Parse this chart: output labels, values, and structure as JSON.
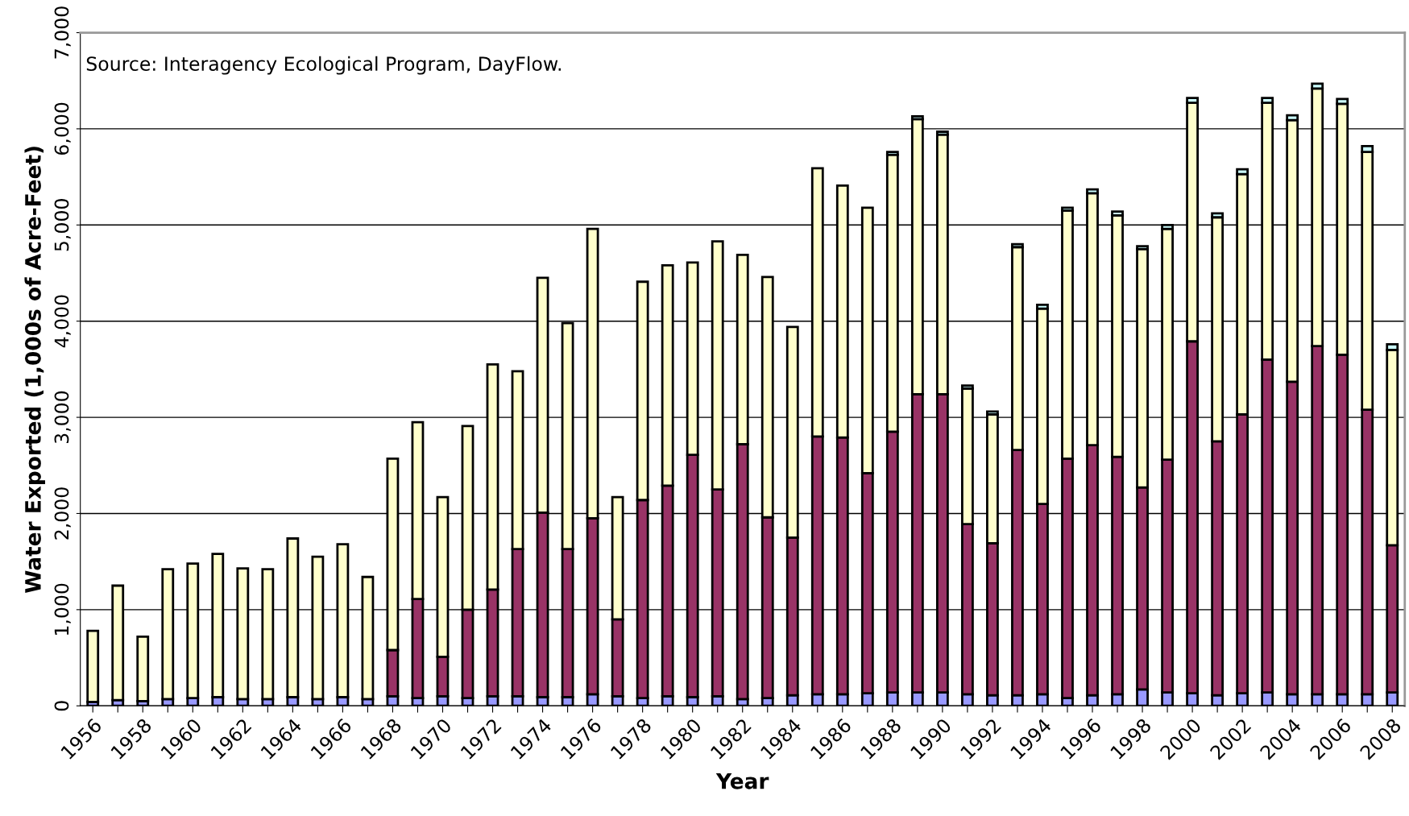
{
  "chart_data": {
    "type": "bar",
    "stacked": true,
    "xlabel": "Year",
    "ylabel": "Water Exported (1,000s of Acre-Feet)",
    "annotations": [
      "Source: Interagency Ecological Program, DayFlow."
    ],
    "categories": [
      "1956",
      null,
      "1958",
      null,
      "1960",
      null,
      "1962",
      null,
      "1964",
      null,
      "1966",
      null,
      "1968",
      null,
      "1970",
      null,
      "1972",
      null,
      "1974",
      null,
      "1976",
      null,
      "1978",
      null,
      "1980",
      null,
      "1982",
      null,
      "1984",
      null,
      "1986",
      null,
      "1988",
      null,
      "1990",
      null,
      "1992",
      null,
      "1994",
      null,
      "1996",
      null,
      "1998",
      null,
      "2000",
      null,
      "2002",
      null,
      "2004",
      null,
      "2006",
      null,
      "2008"
    ],
    "series": [
      {
        "color": "#9999ff",
        "values": [
          40,
          60,
          50,
          70,
          80,
          90,
          70,
          70,
          90,
          70,
          90,
          70,
          100,
          80,
          100,
          80,
          100,
          100,
          90,
          90,
          120,
          100,
          80,
          100,
          90,
          100,
          70,
          80,
          110,
          120,
          120,
          130,
          140,
          140,
          140,
          120,
          110,
          110,
          120,
          80,
          110,
          120,
          170,
          140,
          130,
          110,
          130,
          140,
          120,
          120,
          120,
          120,
          140
        ]
      },
      {
        "color": "#993366",
        "values": [
          null,
          null,
          null,
          null,
          null,
          null,
          null,
          null,
          null,
          null,
          null,
          null,
          480,
          1030,
          410,
          920,
          1110,
          1530,
          1920,
          1540,
          1830,
          800,
          2060,
          2190,
          2520,
          2150,
          2650,
          1880,
          1640,
          2680,
          2670,
          2290,
          2710,
          3100,
          3100,
          1770,
          1580,
          2550,
          1980,
          2490,
          2600,
          2470,
          2100,
          2420,
          3660,
          2640,
          2900,
          3460,
          3250,
          3620,
          3530,
          2960,
          1530
        ]
      },
      {
        "color": "#ffffcc",
        "values": [
          740,
          1190,
          670,
          1350,
          1400,
          1490,
          1360,
          1350,
          1650,
          1480,
          1590,
          1270,
          1990,
          1840,
          1660,
          1910,
          2340,
          1850,
          2440,
          2350,
          3010,
          1270,
          2270,
          2290,
          2000,
          2580,
          1970,
          2500,
          2190,
          2790,
          2620,
          2760,
          2880,
          2860,
          2700,
          1410,
          1340,
          2110,
          2030,
          2580,
          2620,
          2510,
          2480,
          2400,
          2480,
          2330,
          2500,
          2670,
          2720,
          2680,
          2610,
          2680,
          2030
        ]
      },
      {
        "color": "#ccffff",
        "values": [
          null,
          null,
          null,
          null,
          null,
          null,
          null,
          null,
          null,
          null,
          null,
          null,
          null,
          null,
          null,
          null,
          null,
          null,
          null,
          null,
          null,
          null,
          null,
          null,
          null,
          null,
          null,
          null,
          null,
          null,
          null,
          null,
          30,
          30,
          30,
          30,
          30,
          30,
          40,
          30,
          40,
          40,
          30,
          40,
          50,
          40,
          50,
          50,
          50,
          50,
          50,
          60,
          60
        ]
      }
    ],
    "ylim": [
      0,
      7000
    ],
    "yticks": [
      {
        "value": 0,
        "label": "0"
      },
      {
        "value": 1000,
        "label": "1,000"
      },
      {
        "value": 2000,
        "label": "2,000"
      },
      {
        "value": 3000,
        "label": "3,000"
      },
      {
        "value": 4000,
        "label": "4,000"
      },
      {
        "value": 5000,
        "label": "5,000"
      },
      {
        "value": 6000,
        "label": "6,000"
      },
      {
        "value": 7000,
        "label": "7,000"
      }
    ],
    "grid": "y"
  }
}
